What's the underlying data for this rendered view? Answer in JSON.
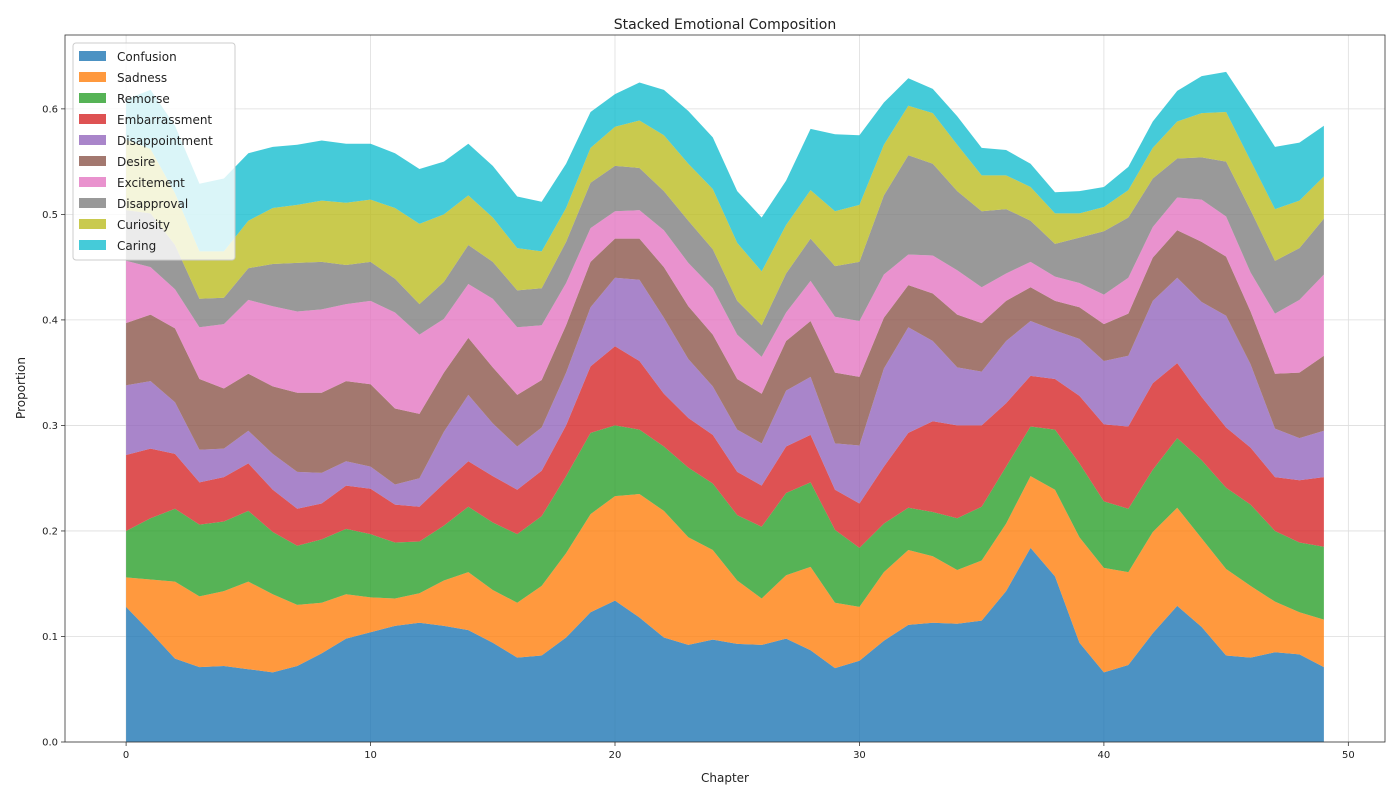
{
  "chart_data": {
    "type": "area",
    "stacked": true,
    "title": "Stacked Emotional Composition",
    "xlabel": "Chapter",
    "ylabel": "Proportion",
    "xlim": [
      -2.5,
      51.5
    ],
    "ylim": [
      0,
      0.67
    ],
    "x_ticks": [
      0,
      10,
      20,
      30,
      40,
      50
    ],
    "y_ticks": [
      "0.0",
      "0.1",
      "0.2",
      "0.3",
      "0.4",
      "0.5",
      "0.6"
    ],
    "grid": true,
    "legend_position": "upper left",
    "x": [
      0,
      1,
      2,
      3,
      4,
      5,
      6,
      7,
      8,
      9,
      10,
      11,
      12,
      13,
      14,
      15,
      16,
      17,
      18,
      19,
      20,
      21,
      22,
      23,
      24,
      25,
      26,
      27,
      28,
      29,
      30,
      31,
      32,
      33,
      34,
      35,
      36,
      37,
      38,
      39,
      40,
      41,
      42,
      43,
      44,
      45,
      46,
      47,
      48,
      49
    ],
    "colors": [
      "#1f77b4",
      "#ff7f0e",
      "#2ca02c",
      "#d62728",
      "#9467bd",
      "#8c564b",
      "#e377c2",
      "#7f7f7f",
      "#bcbd22",
      "#17becf"
    ],
    "series": [
      {
        "name": "Confusion",
        "values": [
          0.128,
          0.104,
          0.079,
          0.071,
          0.072,
          0.069,
          0.066,
          0.072,
          0.084,
          0.098,
          0.104,
          0.11,
          0.113,
          0.11,
          0.106,
          0.094,
          0.08,
          0.082,
          0.099,
          0.123,
          0.134,
          0.118,
          0.099,
          0.092,
          0.097,
          0.093,
          0.092,
          0.098,
          0.087,
          0.07,
          0.077,
          0.096,
          0.111,
          0.113,
          0.112,
          0.115,
          0.143,
          0.184,
          0.157,
          0.094,
          0.066,
          0.073,
          0.103,
          0.129,
          0.109,
          0.082,
          0.08,
          0.085,
          0.083,
          0.071
        ]
      },
      {
        "name": "Sadness",
        "values": [
          0.028,
          0.05,
          0.073,
          0.067,
          0.071,
          0.083,
          0.074,
          0.058,
          0.048,
          0.042,
          0.033,
          0.026,
          0.028,
          0.043,
          0.055,
          0.05,
          0.052,
          0.066,
          0.08,
          0.093,
          0.099,
          0.117,
          0.12,
          0.102,
          0.085,
          0.06,
          0.044,
          0.06,
          0.079,
          0.062,
          0.051,
          0.065,
          0.071,
          0.063,
          0.051,
          0.057,
          0.064,
          0.068,
          0.082,
          0.1,
          0.099,
          0.088,
          0.096,
          0.093,
          0.084,
          0.082,
          0.068,
          0.048,
          0.04,
          0.045
        ]
      },
      {
        "name": "Remorse",
        "values": [
          0.044,
          0.058,
          0.069,
          0.068,
          0.066,
          0.067,
          0.059,
          0.056,
          0.06,
          0.062,
          0.06,
          0.053,
          0.049,
          0.052,
          0.062,
          0.064,
          0.065,
          0.066,
          0.073,
          0.077,
          0.067,
          0.061,
          0.061,
          0.066,
          0.063,
          0.062,
          0.068,
          0.078,
          0.08,
          0.069,
          0.056,
          0.046,
          0.04,
          0.042,
          0.049,
          0.051,
          0.054,
          0.047,
          0.057,
          0.07,
          0.063,
          0.06,
          0.059,
          0.066,
          0.074,
          0.077,
          0.077,
          0.067,
          0.066,
          0.069
        ]
      },
      {
        "name": "Embarrassment",
        "values": [
          0.072,
          0.066,
          0.052,
          0.04,
          0.042,
          0.045,
          0.04,
          0.035,
          0.034,
          0.041,
          0.043,
          0.036,
          0.033,
          0.04,
          0.043,
          0.044,
          0.042,
          0.043,
          0.048,
          0.063,
          0.075,
          0.065,
          0.05,
          0.047,
          0.046,
          0.041,
          0.039,
          0.044,
          0.045,
          0.038,
          0.042,
          0.054,
          0.071,
          0.086,
          0.088,
          0.077,
          0.06,
          0.048,
          0.048,
          0.064,
          0.073,
          0.078,
          0.082,
          0.071,
          0.06,
          0.057,
          0.054,
          0.051,
          0.059,
          0.066
        ]
      },
      {
        "name": "Disappointment",
        "values": [
          0.066,
          0.064,
          0.049,
          0.031,
          0.027,
          0.031,
          0.034,
          0.035,
          0.029,
          0.023,
          0.021,
          0.019,
          0.027,
          0.049,
          0.063,
          0.05,
          0.041,
          0.041,
          0.05,
          0.056,
          0.065,
          0.077,
          0.072,
          0.056,
          0.046,
          0.04,
          0.04,
          0.053,
          0.055,
          0.044,
          0.055,
          0.093,
          0.1,
          0.076,
          0.055,
          0.051,
          0.059,
          0.052,
          0.046,
          0.054,
          0.06,
          0.067,
          0.078,
          0.081,
          0.09,
          0.106,
          0.079,
          0.046,
          0.04,
          0.044
        ]
      },
      {
        "name": "Desire",
        "values": [
          0.059,
          0.063,
          0.07,
          0.067,
          0.057,
          0.054,
          0.064,
          0.075,
          0.076,
          0.076,
          0.078,
          0.072,
          0.061,
          0.056,
          0.054,
          0.053,
          0.049,
          0.045,
          0.045,
          0.043,
          0.037,
          0.039,
          0.048,
          0.05,
          0.049,
          0.048,
          0.047,
          0.047,
          0.053,
          0.067,
          0.065,
          0.048,
          0.04,
          0.045,
          0.05,
          0.046,
          0.038,
          0.032,
          0.028,
          0.03,
          0.035,
          0.04,
          0.041,
          0.045,
          0.057,
          0.056,
          0.05,
          0.052,
          0.062,
          0.071
        ]
      },
      {
        "name": "Excitement",
        "values": [
          0.059,
          0.045,
          0.037,
          0.049,
          0.061,
          0.07,
          0.076,
          0.077,
          0.079,
          0.073,
          0.079,
          0.091,
          0.075,
          0.051,
          0.051,
          0.065,
          0.064,
          0.052,
          0.04,
          0.032,
          0.026,
          0.027,
          0.035,
          0.041,
          0.044,
          0.042,
          0.035,
          0.027,
          0.038,
          0.053,
          0.053,
          0.041,
          0.029,
          0.036,
          0.042,
          0.034,
          0.026,
          0.024,
          0.023,
          0.023,
          0.028,
          0.034,
          0.029,
          0.031,
          0.04,
          0.038,
          0.037,
          0.057,
          0.069,
          0.077
        ]
      },
      {
        "name": "Disapproval",
        "values": [
          0.048,
          0.051,
          0.042,
          0.027,
          0.025,
          0.03,
          0.04,
          0.046,
          0.045,
          0.037,
          0.037,
          0.032,
          0.029,
          0.035,
          0.037,
          0.035,
          0.035,
          0.035,
          0.039,
          0.043,
          0.043,
          0.04,
          0.037,
          0.04,
          0.037,
          0.032,
          0.03,
          0.037,
          0.04,
          0.048,
          0.056,
          0.075,
          0.094,
          0.087,
          0.075,
          0.072,
          0.061,
          0.039,
          0.031,
          0.043,
          0.06,
          0.057,
          0.046,
          0.037,
          0.04,
          0.052,
          0.059,
          0.05,
          0.049,
          0.053
        ]
      },
      {
        "name": "Curiosity",
        "values": [
          0.067,
          0.061,
          0.049,
          0.045,
          0.044,
          0.045,
          0.053,
          0.055,
          0.058,
          0.059,
          0.059,
          0.067,
          0.076,
          0.064,
          0.047,
          0.042,
          0.04,
          0.035,
          0.032,
          0.033,
          0.037,
          0.045,
          0.053,
          0.054,
          0.057,
          0.055,
          0.051,
          0.046,
          0.046,
          0.052,
          0.054,
          0.048,
          0.047,
          0.048,
          0.044,
          0.034,
          0.032,
          0.032,
          0.029,
          0.023,
          0.023,
          0.026,
          0.029,
          0.035,
          0.042,
          0.047,
          0.047,
          0.049,
          0.045,
          0.04
        ]
      },
      {
        "name": "Caring",
        "values": [
          0.038,
          0.056,
          0.064,
          0.064,
          0.069,
          0.064,
          0.058,
          0.057,
          0.057,
          0.056,
          0.053,
          0.052,
          0.052,
          0.05,
          0.049,
          0.049,
          0.049,
          0.047,
          0.042,
          0.034,
          0.031,
          0.036,
          0.043,
          0.05,
          0.049,
          0.049,
          0.051,
          0.042,
          0.058,
          0.073,
          0.066,
          0.04,
          0.026,
          0.023,
          0.027,
          0.026,
          0.024,
          0.022,
          0.02,
          0.021,
          0.019,
          0.022,
          0.025,
          0.029,
          0.035,
          0.038,
          0.049,
          0.059,
          0.055,
          0.048
        ]
      }
    ]
  }
}
